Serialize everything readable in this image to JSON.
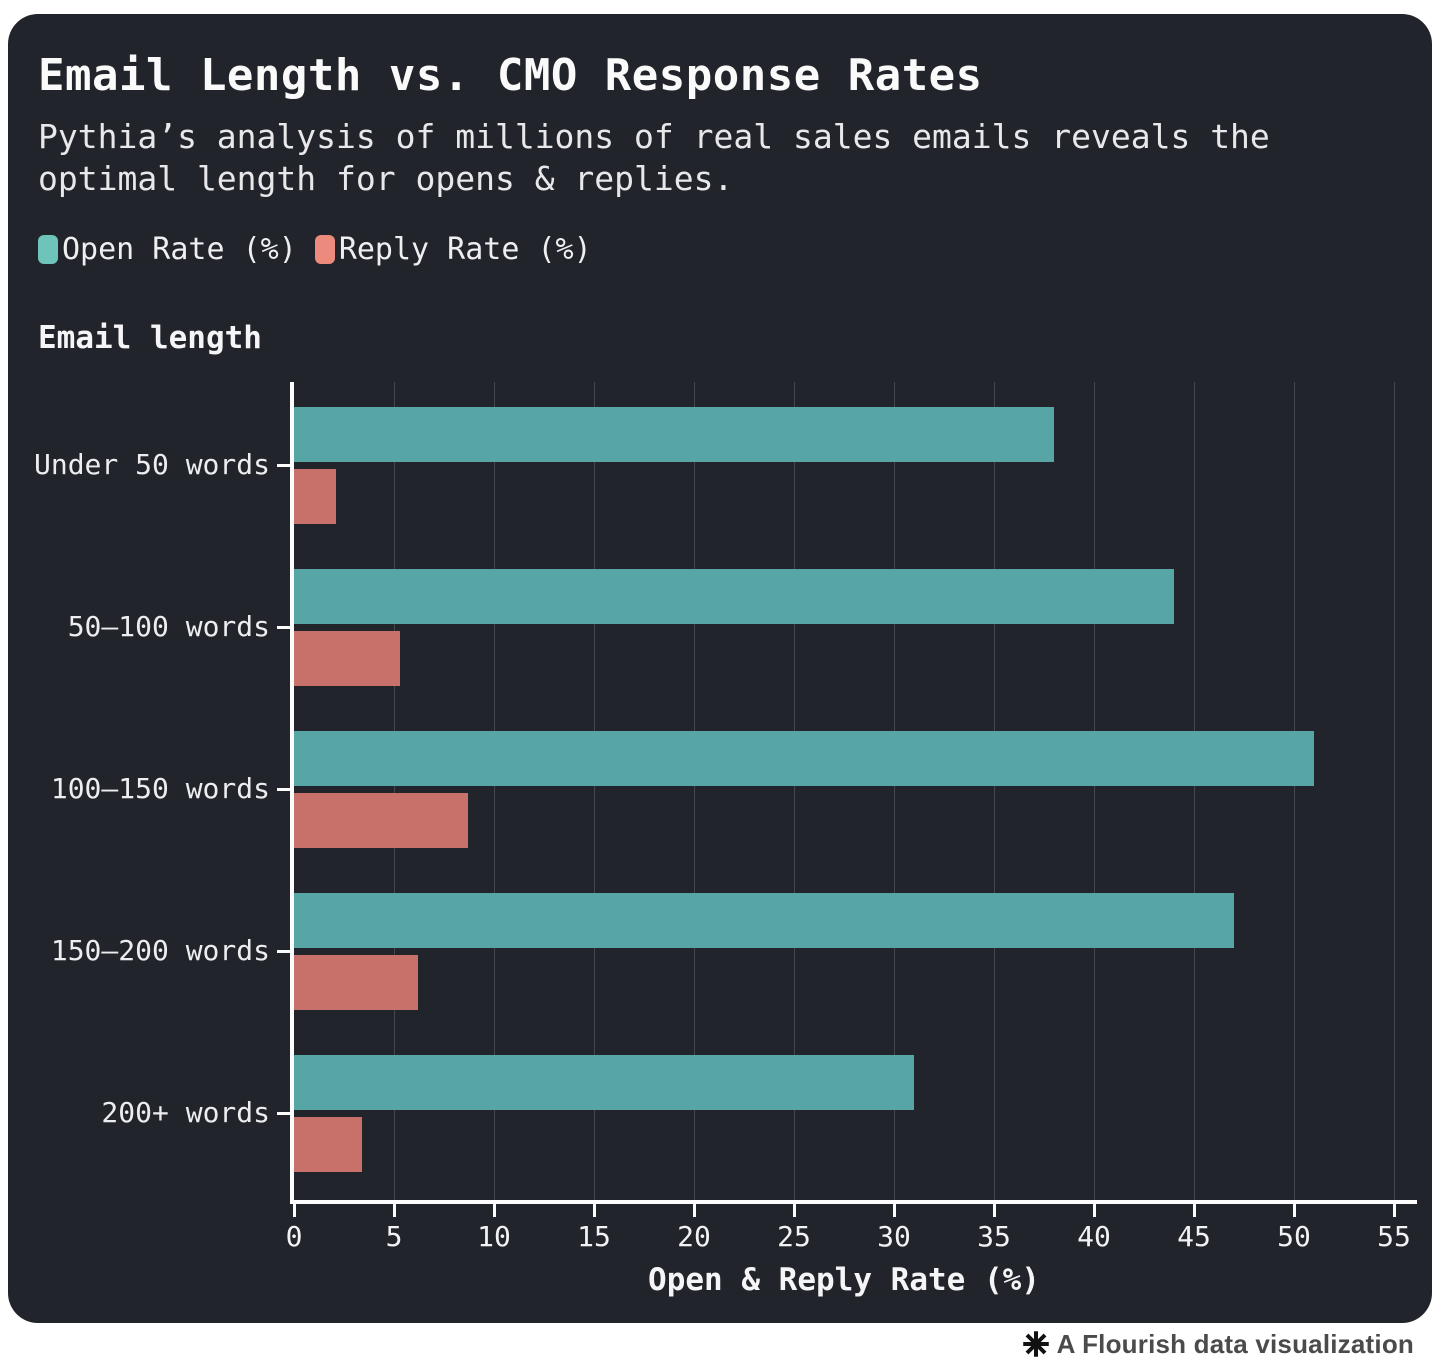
{
  "header": {
    "title": "Email Length vs. CMO Response Rates",
    "subtitle": "Pythia’s analysis of millions of real sales emails reveals the\noptimal length for opens & replies."
  },
  "legend": {
    "items": [
      {
        "label": "Open Rate (%)",
        "swatch_color": "#6EC3BB"
      },
      {
        "label": "Reply Rate (%)",
        "swatch_color": "#EB8A7D"
      }
    ]
  },
  "chart_data": {
    "type": "bar",
    "orientation": "horizontal",
    "title": "Email Length vs. CMO Response Rates",
    "subtitle": "Pythia’s analysis of millions of real sales emails reveals the optimal length for opens & replies.",
    "y_axis_title": "Email length",
    "xlabel": "Open & Reply Rate (%)",
    "categories": [
      "Under 50 words",
      "50–100 words",
      "100–150 words",
      "150–200 words",
      "200+ words"
    ],
    "series": [
      {
        "name": "Open Rate (%)",
        "color": "#57A5A5",
        "values": [
          38,
          44,
          51,
          47,
          31
        ]
      },
      {
        "name": "Reply Rate (%)",
        "color": "#C8716A",
        "values": [
          2.1,
          5.3,
          8.7,
          6.2,
          3.4
        ]
      }
    ],
    "xlim": [
      0,
      55
    ],
    "x_ticks": [
      0,
      5,
      10,
      15,
      20,
      25,
      30,
      35,
      40,
      45,
      50,
      55
    ],
    "grid": true,
    "legend_position": "top"
  },
  "footer": {
    "attribution": "A Flourish data visualization"
  },
  "colors": {
    "card_background": "#22242B",
    "page_background": "#FFFFFF",
    "open_rate_bar": "#57A5A5",
    "reply_rate_bar": "#C8716A",
    "legend_open_swatch": "#6EC3BB",
    "legend_reply_swatch": "#EB8A7D",
    "gridline": "#45474E",
    "axis_line": "#FCFCFC",
    "text": "#F2F2F4",
    "attribution_text": "#4B4B4B"
  }
}
